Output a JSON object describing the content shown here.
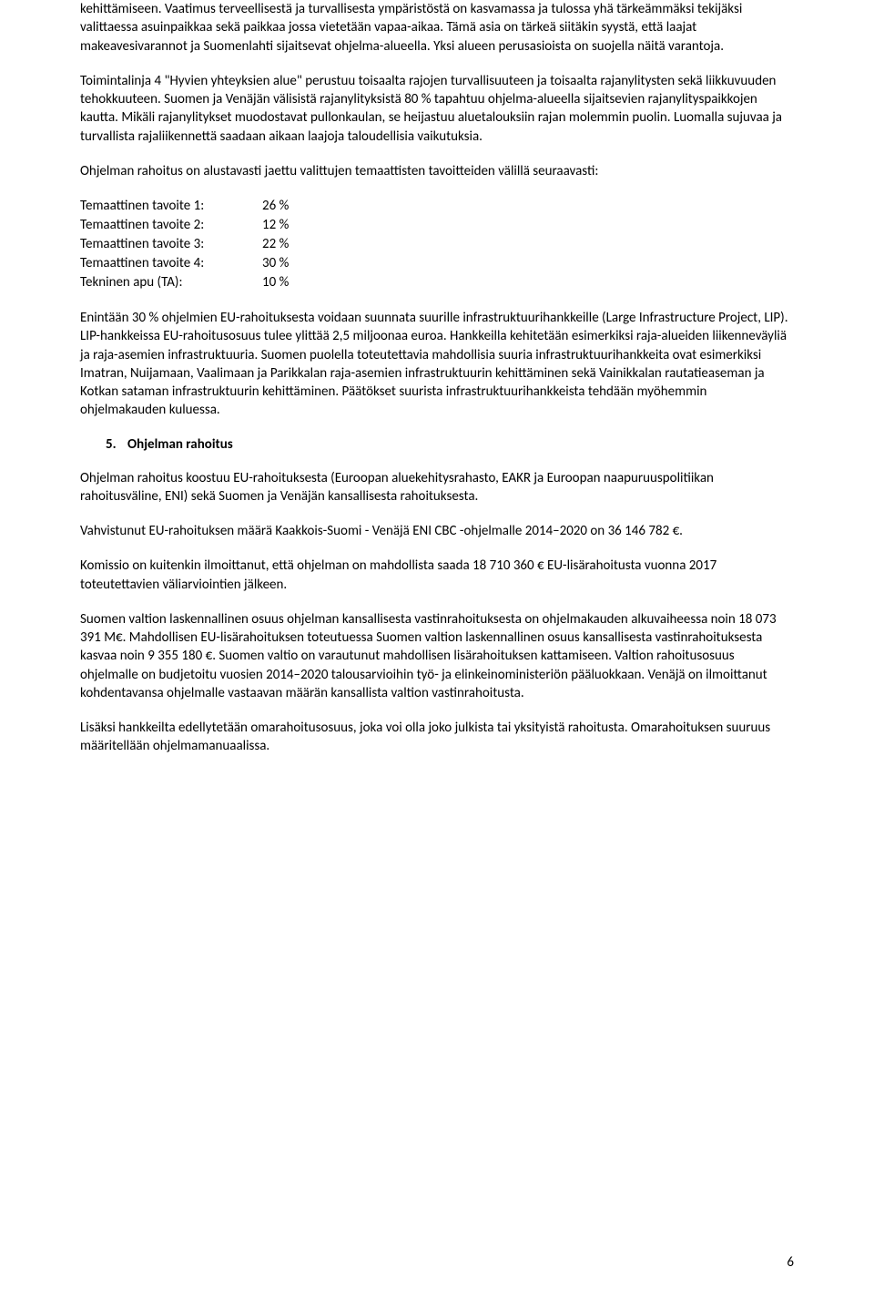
{
  "paragraphs": {
    "p1": "kehittämiseen. Vaatimus terveellisestä ja turvallisesta ympäristöstä on kasvamassa ja tulossa yhä tärkeämmäksi tekijäksi valittaessa asuinpaikkaa sekä paikkaa jossa vietetään vapaa-aikaa. Tämä asia on tärkeä siitäkin syystä, että laajat makeavesivarannot ja Suomenlahti sijaitsevat ohjelma-alueella. Yksi alueen perusasioista on suojella näitä varantoja.",
    "p2": "Toimintalinja 4 \"Hyvien yhteyksien alue\" perustuu toisaalta rajojen turvallisuuteen ja toisaalta rajanylitysten sekä liikkuvuuden tehokkuuteen. Suomen ja Venäjän välisistä rajanylityksistä 80 % tapahtuu ohjelma-alueella sijaitsevien rajanylityspaikkojen kautta. Mikäli rajanylitykset muodostavat pullonkaulan, se heijastuu aluetalouksiin rajan molemmin puolin. Luomalla sujuvaa ja turvallista rajaliikennettä saadaan aikaan laajoja taloudellisia vaikutuksia.",
    "p3": "Ohjelman rahoitus on alustavasti jaettu valittujen temaattisten tavoitteiden välillä seuraavasti:",
    "p4": "Enintään 30 % ohjelmien EU-rahoituksesta voidaan suunnata suurille infrastruktuurihankkeille (Large Infrastructure Project, LIP). LIP-hankkeissa EU-rahoitusosuus tulee ylittää 2,5 miljoonaa euroa. Hankkeilla kehitetään esimerkiksi raja-alueiden liikenneväyliä ja raja-asemien infrastruktuuria. Suomen puolella toteutettavia mahdollisia suuria infrastruktuurihankkeita ovat esimerkiksi Imatran, Nuijamaan, Vaalimaan ja Parikkalan raja-asemien infrastruktuurin kehittäminen sekä Vainikkalan rautatieaseman ja Kotkan sataman infrastruktuurin kehittäminen. Päätökset suurista infrastruktuurihankkeista tehdään myöhemmin ohjelmakauden kuluessa.",
    "p5": "Ohjelman rahoitus koostuu EU-rahoituksesta (Euroopan aluekehitysrahasto, EAKR ja Euroopan naapuruuspolitiikan rahoitusväline, ENI) sekä Suomen ja Venäjän kansallisesta rahoituksesta.",
    "p6": "Vahvistunut EU-rahoituksen määrä Kaakkois-Suomi - Venäjä ENI CBC -ohjelmalle 2014–2020 on 36 146 782 €.",
    "p7": "Komissio on kuitenkin ilmoittanut, että ohjelman on mahdollista saada 18 710 360 € EU-lisärahoitusta vuonna 2017 toteutettavien väliarviointien jälkeen.",
    "p8": "Suomen valtion laskennallinen osuus ohjelman kansallisesta vastinrahoituksesta on ohjelmakauden alkuvaiheessa noin 18 073 391 M€. Mahdollisen EU-lisärahoituksen toteutuessa Suomen valtion laskennallinen osuus kansallisesta vastinrahoituksesta kasvaa noin 9 355 180 €. Suomen valtio on varautunut mahdollisen lisärahoituksen kattamiseen. Valtion rahoitusosuus ohjelmalle on budjetoitu vuosien 2014–2020 talousarvioihin työ- ja elinkeinoministeriön pääluokkaan. Venäjä on ilmoittanut kohdentavansa ohjelmalle vastaavan määrän kansallista valtion vastinrahoitusta.",
    "p9": "Lisäksi hankkeilta edellytetään omarahoitusosuus, joka voi olla joko julkista tai yksityistä rahoitusta. Omarahoituksen suuruus määritellään ohjelmamanuaalissa."
  },
  "allocation_rows": [
    {
      "label": "Temaattinen tavoite 1:",
      "value": "26 %"
    },
    {
      "label": "Temaattinen tavoite 2:",
      "value": "12 %"
    },
    {
      "label": "Temaattinen tavoite 3:",
      "value": "22 %"
    },
    {
      "label": "Temaattinen tavoite 4:",
      "value": "30 %"
    },
    {
      "label": "Tekninen apu (TA):",
      "value": "10 %"
    }
  ],
  "heading": {
    "number": "5.",
    "text": "Ohjelman rahoitus"
  },
  "page_number": "6"
}
